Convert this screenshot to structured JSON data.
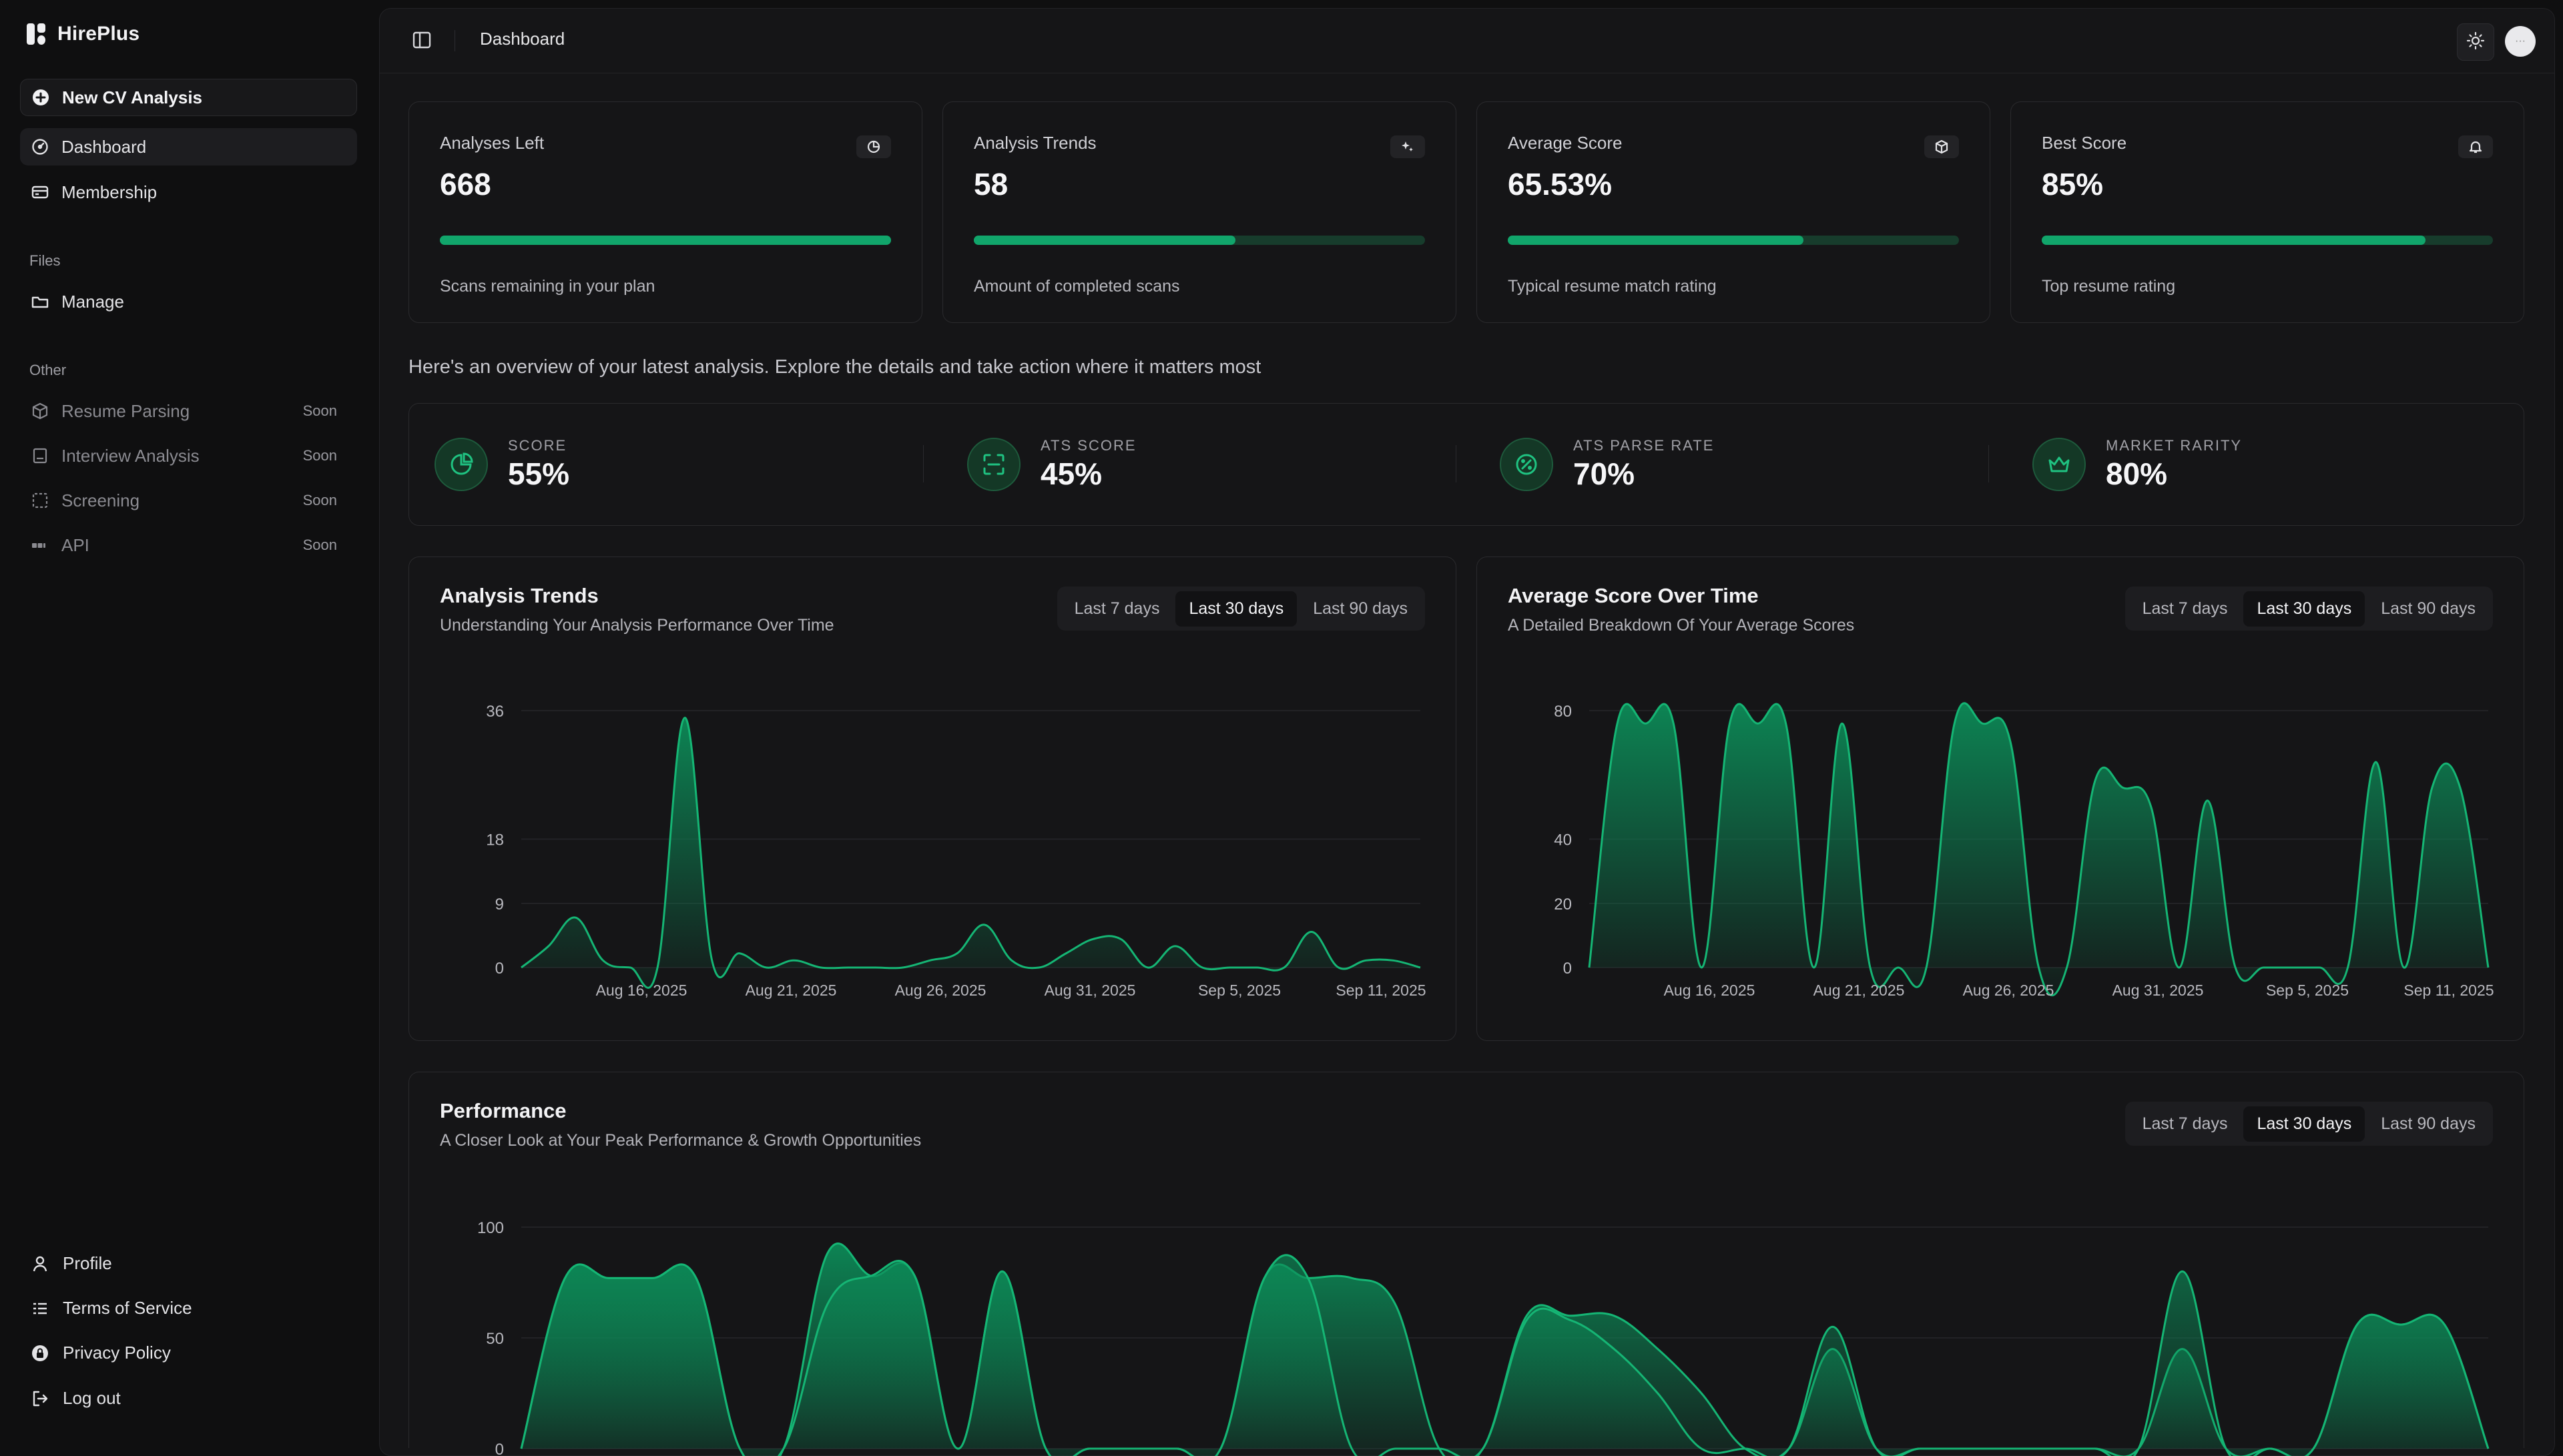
{
  "app": {
    "name": "HirePlus"
  },
  "sidebar": {
    "new_analysis": "New CV Analysis",
    "main_items": [
      {
        "label": "Dashboard",
        "icon": "dashboard-icon"
      },
      {
        "label": "Membership",
        "icon": "card-icon"
      }
    ],
    "files_label": "Files",
    "files_items": [
      {
        "label": "Manage",
        "icon": "folder-icon"
      }
    ],
    "other_label": "Other",
    "other_items": [
      {
        "label": "Resume Parsing",
        "badge": "Soon",
        "icon": "cube-icon"
      },
      {
        "label": "Interview Analysis",
        "badge": "Soon",
        "icon": "document-icon"
      },
      {
        "label": "Screening",
        "badge": "Soon",
        "icon": "scan-icon"
      },
      {
        "label": "API",
        "badge": "Soon",
        "icon": "api-icon"
      }
    ],
    "footer_items": [
      {
        "label": "Profile",
        "icon": "user-icon"
      },
      {
        "label": "Terms of Service",
        "icon": "list-icon"
      },
      {
        "label": "Privacy Policy",
        "icon": "lock-icon"
      },
      {
        "label": "Log out",
        "icon": "logout-icon"
      }
    ]
  },
  "header": {
    "breadcrumb": "Dashboard"
  },
  "stats": [
    {
      "title": "Analyses Left",
      "value": "668",
      "sub": "Scans remaining in your plan",
      "progress": 1.0,
      "icon": "pie-icon"
    },
    {
      "title": "Analysis Trends",
      "value": "58",
      "sub": "Amount of completed scans",
      "progress": 0.58,
      "icon": "sparkle-icon"
    },
    {
      "title": "Average Score",
      "value": "65.53%",
      "sub": "Typical resume match rating",
      "progress": 0.6553,
      "icon": "box-icon"
    },
    {
      "title": "Best Score",
      "value": "85%",
      "sub": "Top resume rating",
      "progress": 0.85,
      "icon": "bell-icon"
    }
  ],
  "overview_text": "Here's an overview of your latest analysis. Explore the details and take action where it matters most",
  "metrics": [
    {
      "label": "SCORE",
      "value": "55%",
      "icon": "pie-chart-icon"
    },
    {
      "label": "ATS SCORE",
      "value": "45%",
      "icon": "scan-frame-icon"
    },
    {
      "label": "ATS PARSE RATE",
      "value": "70%",
      "icon": "percent-badge-icon"
    },
    {
      "label": "MARKET RARITY",
      "value": "80%",
      "icon": "crown-icon"
    }
  ],
  "range_options": [
    "Last 7 days",
    "Last 30 days",
    "Last 90 days"
  ],
  "range_selected": "Last 30 days",
  "charts": {
    "trends": {
      "title": "Analysis Trends",
      "subtitle": "Understanding Your Analysis Performance Over Time"
    },
    "avg": {
      "title": "Average Score Over Time",
      "subtitle": "A Detailed Breakdown Of Your Average Scores"
    },
    "perf": {
      "title": "Performance",
      "subtitle": "A Closer Look at Your Peak Performance & Growth Opportunities"
    }
  },
  "chart_data": [
    {
      "type": "area",
      "title": "Analysis Trends",
      "x_ticks": [
        "Aug 16, 2025",
        "Aug 21, 2025",
        "Aug 26, 2025",
        "Aug 31, 2025",
        "Sep 5, 2025",
        "Sep 11, 2025"
      ],
      "y_ticks": [
        0,
        9,
        18,
        36
      ],
      "ylim": [
        0,
        36
      ],
      "series": [
        {
          "values": [
            0,
            3,
            7,
            1,
            0,
            0,
            35,
            1,
            2,
            0,
            1,
            0,
            0,
            0,
            0,
            1,
            2,
            6,
            1,
            0,
            2,
            4,
            4,
            0,
            3,
            0,
            0,
            0,
            0,
            5,
            0,
            1,
            1,
            0
          ]
        }
      ]
    },
    {
      "type": "area",
      "title": "Average Score Over Time",
      "x_ticks": [
        "Aug 16, 2025",
        "Aug 21, 2025",
        "Aug 26, 2025",
        "Aug 31, 2025",
        "Sep 5, 2025",
        "Sep 11, 2025"
      ],
      "y_ticks": [
        0,
        20,
        40,
        80
      ],
      "ylim": [
        0,
        80
      ],
      "series": [
        {
          "values": [
            0,
            76,
            76,
            76,
            0,
            76,
            76,
            76,
            0,
            76,
            0,
            0,
            0,
            76,
            76,
            70,
            0,
            0,
            58,
            56,
            50,
            0,
            52,
            0,
            0,
            0,
            0,
            0,
            64,
            0,
            56,
            56,
            0
          ]
        }
      ]
    },
    {
      "type": "area",
      "title": "Performance",
      "y_ticks": [
        0,
        50,
        100
      ],
      "ylim": [
        0,
        100
      ],
      "series": [
        {
          "values": [
            0,
            77,
            77,
            77,
            77,
            0,
            0,
            88,
            78,
            78,
            0,
            80,
            0,
            0,
            0,
            0,
            0,
            77,
            77,
            77,
            65,
            0,
            0,
            60,
            60,
            60,
            45,
            25,
            0,
            0,
            45,
            0,
            0,
            0,
            0,
            0,
            0,
            0,
            45,
            0,
            0,
            0,
            56,
            56,
            56,
            0
          ]
        },
        {
          "values": [
            0,
            77,
            77,
            77,
            77,
            0,
            0,
            65,
            78,
            78,
            0,
            80,
            0,
            0,
            0,
            0,
            0,
            77,
            77,
            0,
            0,
            0,
            0,
            58,
            58,
            45,
            25,
            0,
            0,
            0,
            55,
            0,
            0,
            0,
            0,
            0,
            0,
            0,
            80,
            0,
            0,
            0,
            56,
            56,
            56,
            0
          ]
        }
      ]
    }
  ],
  "colors": {
    "accent": "#11a56b",
    "accent_dark": "#173c2c",
    "background": "#0f0f10",
    "panel": "#151517"
  }
}
